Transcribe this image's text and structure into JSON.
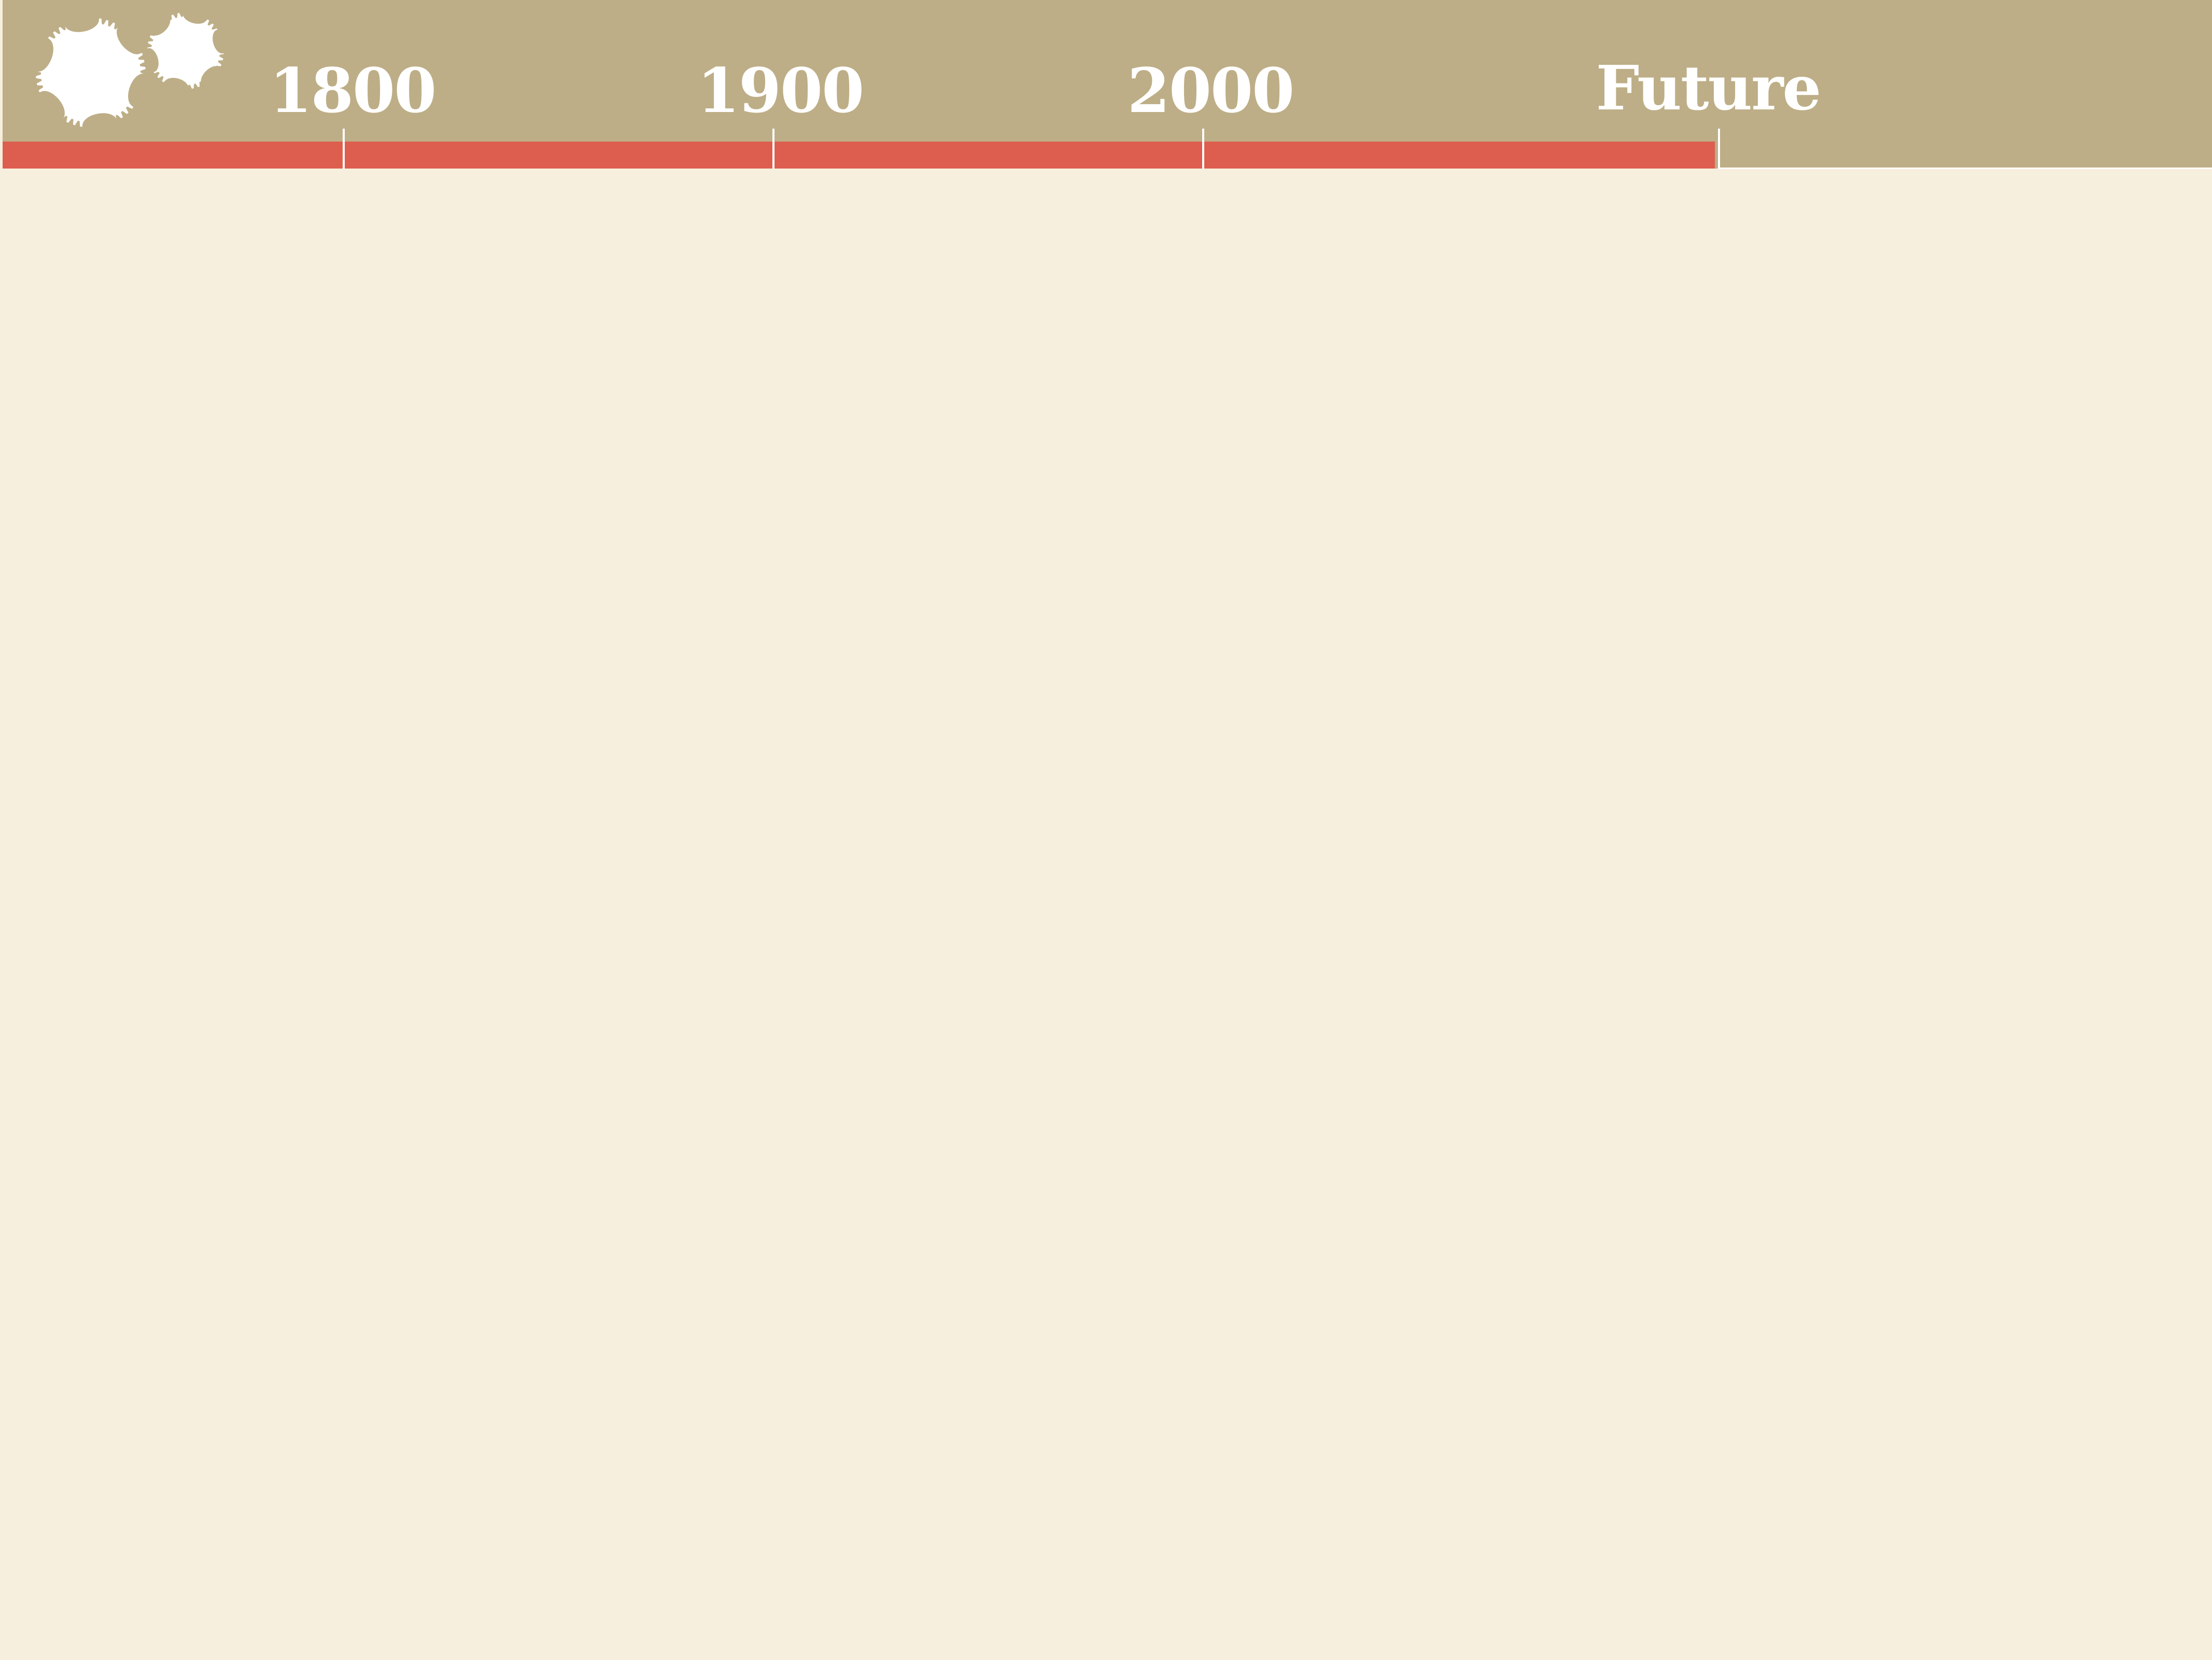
{
  "timeline": {
    "labels": [
      "1800",
      "1900",
      "2000",
      "Future"
    ],
    "progress": 0.775
  },
  "colors": {
    "background": "#F7EFDD",
    "header": "#BDAE87",
    "progress": "#DD5E4E",
    "accent": "#FFFFFF"
  },
  "icons": {
    "logo": "gears-icon"
  }
}
